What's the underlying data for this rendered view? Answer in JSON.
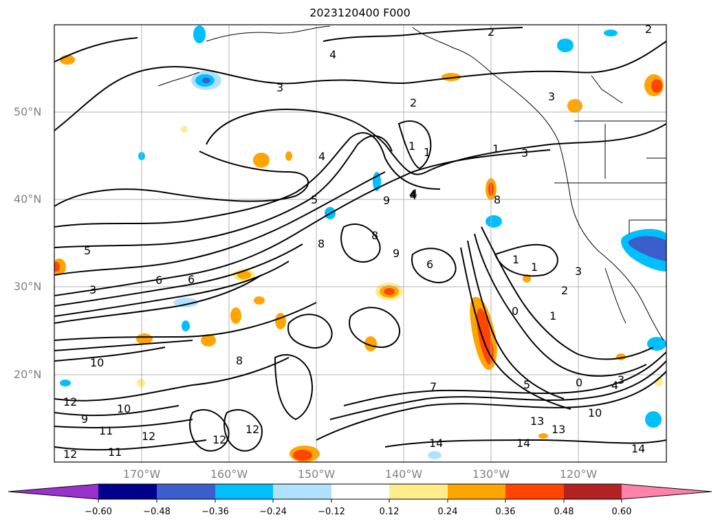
{
  "title": "2023120400 F000",
  "lat_labels": [
    "50°N",
    "40°N",
    "30°N",
    "20°N"
  ],
  "lon_labels": [
    "170°W",
    "160°W",
    "150°W",
    "140°W",
    "130°W",
    "120°W"
  ],
  "contour_labels": [
    "2",
    "2",
    "4",
    "3",
    "3",
    "2",
    "1",
    "4",
    "5",
    "4",
    "8",
    "8",
    "9",
    "1",
    "3",
    "6",
    "8",
    "9",
    "6",
    "1",
    "1",
    "0",
    "3",
    "2",
    "1",
    "4",
    "8",
    "10",
    "12",
    "11",
    "12",
    "9",
    "10",
    "12",
    "14",
    "14",
    "13",
    "10",
    "13",
    "14",
    "12",
    "4",
    "3",
    "5",
    "5",
    "4",
    "3",
    "7",
    "6",
    "0",
    "12",
    "11",
    "1"
  ],
  "colorbar": {
    "ticks": [
      "−0.60",
      "−0.48",
      "−0.36",
      "−0.24",
      "−0.12",
      "0.12",
      "0.24",
      "0.36",
      "0.48",
      "0.60"
    ],
    "colors": [
      "#9932cc",
      "#00008b",
      "#3a5fcd",
      "#00bfff",
      "#b0e2ff",
      "#ffffff",
      "#ffec8b",
      "#ffa500",
      "#ff4500",
      "#b22222",
      "#ff82ab"
    ]
  }
}
